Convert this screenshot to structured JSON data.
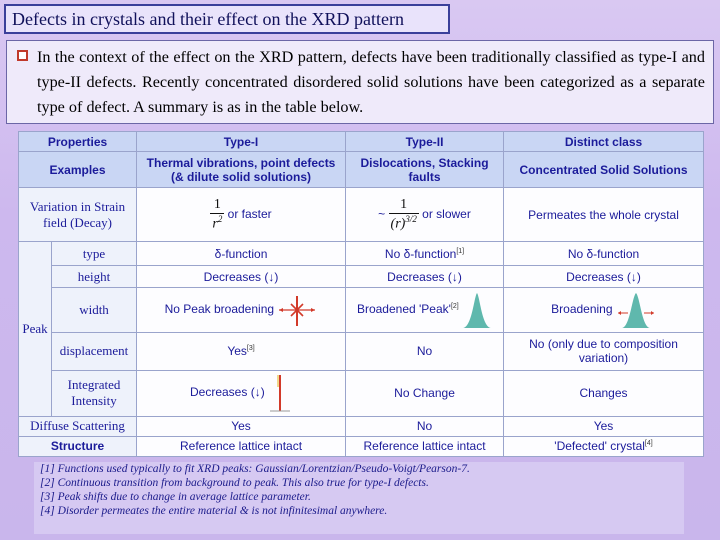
{
  "slide": {
    "title": "Defects in crystals and their effect on the XRD pattern",
    "intro": "In the context of the effect on the XRD pattern, defects have been traditionally classified as type-I and type-II defects. Recently concentrated disordered solid solutions have been categorized as a separate type of defect. A summary is as in the table below."
  },
  "table": {
    "headers": {
      "properties": "Properties",
      "type1": "Type-I",
      "type2": "Type-II",
      "distinct": "Distinct class"
    },
    "examples": {
      "label": "Examples",
      "type1": "Thermal vibrations, point defects (& dilute solid solutions)",
      "type2": "Dislocations, Stacking faults",
      "distinct": "Concentrated Solid Solutions"
    },
    "strain": {
      "label": "Variation in Strain field (Decay)",
      "type1_num": "1",
      "type1_den": "r",
      "type1_den_exp": "2",
      "type1_suffix": "or faster",
      "type2_prefix": "~",
      "type2_num": "1",
      "type2_den": "(r)",
      "type2_den_exp": "3/2",
      "type2_suffix": "or slower",
      "distinct": "Permeates the whole crystal"
    },
    "peak_label": "Peak",
    "type_row": {
      "label": "type",
      "type1": "δ-function",
      "type2": "No δ-function",
      "type2_ref": "[1]",
      "distinct": "No δ-function"
    },
    "height_row": {
      "label": "height",
      "type1": "Decreases (↓)",
      "type2": "Decreases (↓)",
      "distinct": "Decreases (↓)"
    },
    "width_row": {
      "label": "width",
      "type1": "No Peak broadening",
      "type2": "Broadened 'Peak'",
      "type2_ref": "[2]",
      "distinct": "Broadening"
    },
    "displacement_row": {
      "label": "displacement",
      "type1": "Yes",
      "type1_ref": "[3]",
      "type2": "No",
      "distinct": "No (only due to composition variation)"
    },
    "intensity_row": {
      "label": "Integrated Intensity",
      "type1": "Decreases (↓)",
      "type2": "No Change",
      "distinct": "Changes"
    },
    "diffuse_row": {
      "label": "Diffuse Scattering",
      "type1": "Yes",
      "type2": "No",
      "distinct": "Yes"
    },
    "structure_row": {
      "label": "Structure",
      "type1": "Reference lattice intact",
      "type2": "Reference lattice intact",
      "distinct": "'Defected' crystal",
      "distinct_ref": "[4]"
    }
  },
  "footnotes": [
    "[1] Functions used typically to fit XRD peaks: Gaussian/Lorentzian/Pseudo-Voigt/Pearson-7.",
    "[2] Continuous transition from background to peak. This also true for type-I defects.",
    "[3] Peak shifts due to change in average lattice parameter.",
    "[4] Disorder permeates the entire material & is not infinitesimal anywhere."
  ],
  "colors": {
    "peak_fill": "#5fb8ad",
    "mark_red": "#d23a2a",
    "header_bg": "#c9d6f4"
  }
}
